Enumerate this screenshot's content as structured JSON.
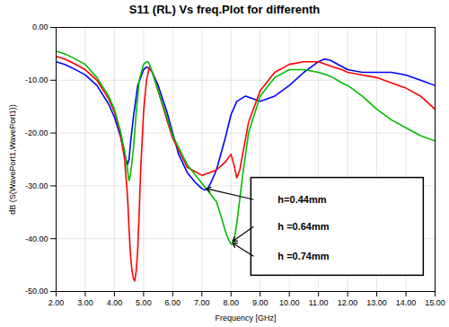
{
  "chart_data": {
    "type": "line",
    "title": "S11 (RL) Vs freq.Plot for differenth",
    "xlabel": "Frequency [GHz]",
    "ylabel": "dB (S(WavePort1,WavePort1))",
    "xlim": [
      2.0,
      15.0
    ],
    "ylim": [
      -50.0,
      0.0
    ],
    "xticks": [
      {
        "value": 2.0,
        "label": "2.00"
      },
      {
        "value": 3.0,
        "label": "3.00"
      },
      {
        "value": 4.0,
        "label": "4.00"
      },
      {
        "value": 5.0,
        "label": "5.00"
      },
      {
        "value": 6.0,
        "label": "6.00"
      },
      {
        "value": 7.0,
        "label": "7.00"
      },
      {
        "value": 8.0,
        "label": "8.00"
      },
      {
        "value": 9.0,
        "label": "9.00"
      },
      {
        "value": 10.0,
        "label": "10.00"
      },
      {
        "value": 11.0,
        "label": "11.00"
      },
      {
        "value": 12.0,
        "label": "12.00"
      },
      {
        "value": 13.0,
        "label": "13.00"
      },
      {
        "value": 14.0,
        "label": "14.00"
      },
      {
        "value": 15.0,
        "label": "15.00"
      }
    ],
    "yticks": [
      {
        "value": 0.0,
        "label": "0.00"
      },
      {
        "value": -10.0,
        "label": "-10.00"
      },
      {
        "value": -20.0,
        "label": "-20.00"
      },
      {
        "value": -30.0,
        "label": "-30.00"
      },
      {
        "value": -40.0,
        "label": "-40.00"
      },
      {
        "value": -50.0,
        "label": "-50.00"
      }
    ],
    "grid": true,
    "series": [
      {
        "color": "#0000ff",
        "x": [
          2.0,
          2.3,
          2.6,
          3.0,
          3.4,
          3.8,
          4.0,
          4.2,
          4.35,
          4.45,
          4.5,
          4.55,
          4.65,
          4.8,
          5.0,
          5.1,
          5.2,
          5.3,
          5.5,
          5.8,
          6.0,
          6.2,
          6.5,
          6.8,
          7.0,
          7.1,
          7.2,
          7.3,
          7.5,
          7.8,
          8.0,
          8.2,
          8.5,
          9.0,
          9.5,
          10.0,
          10.5,
          11.0,
          11.2,
          11.4,
          11.6,
          12.0,
          12.5,
          13.0,
          13.5,
          14.0,
          14.5,
          15.0
        ],
        "values": [
          -6.5,
          -7.0,
          -7.8,
          -9.0,
          -11.0,
          -14.5,
          -17.0,
          -20.5,
          -24.0,
          -26.0,
          -25.0,
          -22.0,
          -17.0,
          -11.0,
          -8.0,
          -7.5,
          -7.8,
          -8.5,
          -11.0,
          -16.0,
          -20.0,
          -24.0,
          -27.5,
          -29.5,
          -30.5,
          -30.8,
          -30.5,
          -29.5,
          -27.0,
          -21.0,
          -16.5,
          -14.0,
          -13.0,
          -14.0,
          -13.0,
          -11.0,
          -8.5,
          -6.5,
          -6.0,
          -6.2,
          -6.8,
          -8.0,
          -8.5,
          -8.5,
          -8.5,
          -9.0,
          -10.0,
          -11.0
        ]
      },
      {
        "color": "#ff0000",
        "x": [
          2.0,
          2.3,
          2.6,
          3.0,
          3.4,
          3.8,
          4.0,
          4.2,
          4.35,
          4.45,
          4.5,
          4.55,
          4.6,
          4.65,
          4.7,
          4.75,
          4.8,
          4.85,
          4.9,
          5.0,
          5.1,
          5.2,
          5.3,
          5.5,
          5.8,
          6.0,
          6.5,
          7.0,
          7.5,
          7.8,
          8.0,
          8.1,
          8.2,
          8.3,
          8.4,
          8.6,
          9.0,
          9.5,
          10.0,
          10.5,
          11.0,
          11.5,
          11.8,
          12.0,
          12.5,
          13.0,
          13.5,
          14.0,
          14.5,
          15.0
        ],
        "values": [
          -5.5,
          -6.0,
          -6.8,
          -8.0,
          -10.0,
          -13.5,
          -16.0,
          -20.0,
          -25.0,
          -32.0,
          -38.0,
          -43.0,
          -46.0,
          -47.5,
          -48.0,
          -46.0,
          -42.0,
          -35.0,
          -27.0,
          -16.0,
          -10.0,
          -7.5,
          -8.5,
          -12.0,
          -17.5,
          -21.0,
          -26.5,
          -28.0,
          -27.0,
          -25.5,
          -24.0,
          -26.0,
          -28.5,
          -27.0,
          -24.0,
          -18.0,
          -12.0,
          -8.5,
          -7.0,
          -6.5,
          -6.5,
          -7.5,
          -8.0,
          -8.5,
          -9.0,
          -9.5,
          -10.5,
          -11.5,
          -13.0,
          -15.5
        ]
      },
      {
        "color": "#00bb00",
        "x": [
          2.0,
          2.3,
          2.6,
          3.0,
          3.4,
          3.8,
          4.0,
          4.2,
          4.35,
          4.45,
          4.5,
          4.55,
          4.65,
          4.75,
          4.85,
          5.0,
          5.1,
          5.15,
          5.2,
          5.3,
          5.5,
          5.8,
          6.0,
          6.5,
          7.0,
          7.5,
          7.7,
          7.8,
          7.9,
          8.0,
          8.05,
          8.1,
          8.2,
          8.4,
          8.6,
          9.0,
          9.5,
          10.0,
          10.5,
          11.0,
          11.3,
          11.5,
          11.8,
          12.0,
          12.5,
          13.0,
          13.5,
          14.0,
          14.5,
          15.0
        ],
        "values": [
          -4.5,
          -5.0,
          -5.8,
          -7.0,
          -9.5,
          -13.0,
          -15.5,
          -19.5,
          -23.5,
          -27.0,
          -29.0,
          -28.0,
          -23.0,
          -16.0,
          -10.0,
          -7.0,
          -6.5,
          -6.5,
          -7.0,
          -8.5,
          -12.0,
          -17.0,
          -20.5,
          -26.0,
          -29.5,
          -33.0,
          -36.5,
          -38.5,
          -40.0,
          -41.0,
          -41.0,
          -40.5,
          -37.0,
          -28.0,
          -20.0,
          -13.0,
          -9.5,
          -8.0,
          -8.0,
          -8.5,
          -9.0,
          -9.5,
          -10.5,
          -11.0,
          -13.0,
          -15.5,
          -17.5,
          -19.0,
          -20.5,
          -21.5
        ]
      }
    ],
    "annotations": [
      {
        "text": "h=0.44mm",
        "x": 7.15,
        "y": -30.5
      },
      {
        "text": "h =0.64mm",
        "x": 8.05,
        "y": -40.5
      },
      {
        "text": "h =0.74mm",
        "x": 8.05,
        "y": -40.8
      }
    ]
  }
}
